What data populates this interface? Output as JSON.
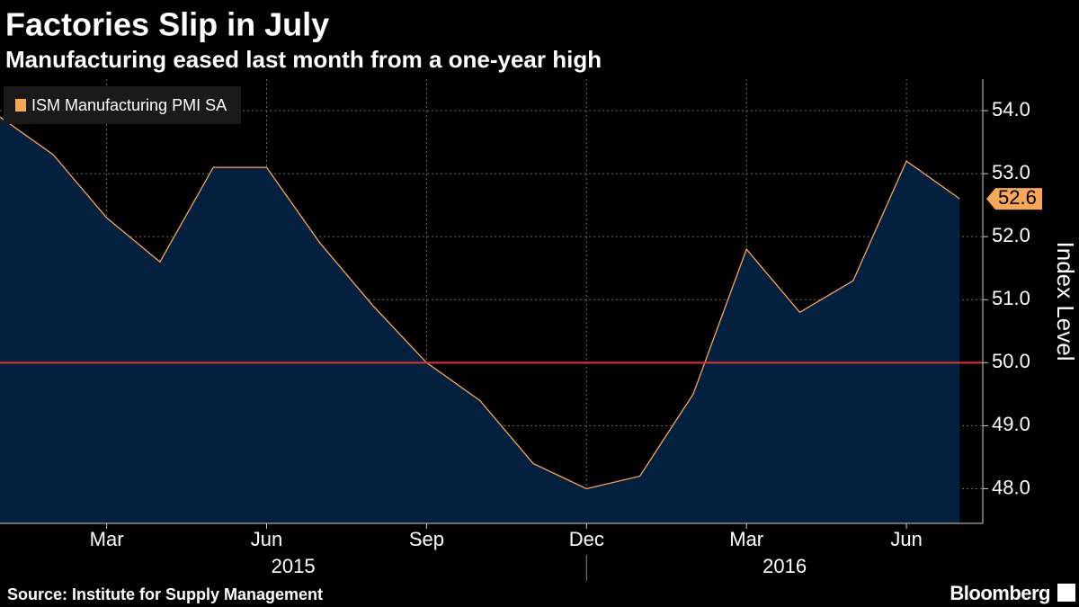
{
  "chart_data": {
    "type": "area",
    "title": "Factories Slip in July",
    "subtitle": "Manufacturing eased last month from a one-year high",
    "y_label": "Index Level",
    "source": "Source: Institute for Supply Management",
    "brand": "Bloomberg",
    "x": [
      "2015-01",
      "2015-02",
      "2015-03",
      "2015-04",
      "2015-05",
      "2015-06",
      "2015-07",
      "2015-08",
      "2015-09",
      "2015-10",
      "2015-11",
      "2015-12",
      "2016-01",
      "2016-02",
      "2016-03",
      "2016-04",
      "2016-05",
      "2016-06",
      "2016-07"
    ],
    "series": [
      {
        "name": "ISM Manufacturing PMI SA",
        "color": "#f7a65a",
        "fill": "#05203f",
        "values": [
          53.9,
          53.3,
          52.3,
          51.6,
          53.1,
          53.1,
          51.9,
          50.9,
          50.0,
          49.4,
          48.4,
          48.0,
          48.2,
          49.5,
          51.8,
          50.8,
          51.3,
          53.2,
          52.6
        ]
      }
    ],
    "xticks": [
      {
        "value": "2015-03",
        "label": "Mar"
      },
      {
        "value": "2015-06",
        "label": "Jun"
      },
      {
        "value": "2015-09",
        "label": "Sep"
      },
      {
        "value": "2015-12",
        "label": "Dec"
      },
      {
        "value": "2016-03",
        "label": "Mar"
      },
      {
        "value": "2016-06",
        "label": "Jun"
      }
    ],
    "x_groups": [
      "2015",
      "2016"
    ],
    "ylim": [
      47.45,
      54.5
    ],
    "yticks": [
      {
        "value": 48,
        "label": "48.0"
      },
      {
        "value": 49,
        "label": "49.0"
      },
      {
        "value": 50,
        "label": "50.0"
      },
      {
        "value": 51,
        "label": "51.0"
      },
      {
        "value": 52,
        "label": "52.0"
      },
      {
        "value": 53,
        "label": "53.0"
      },
      {
        "value": 54,
        "label": "54.0"
      }
    ],
    "reference_line": 50,
    "reference_color": "#e0333a",
    "grid": true,
    "legend": "top-left"
  }
}
